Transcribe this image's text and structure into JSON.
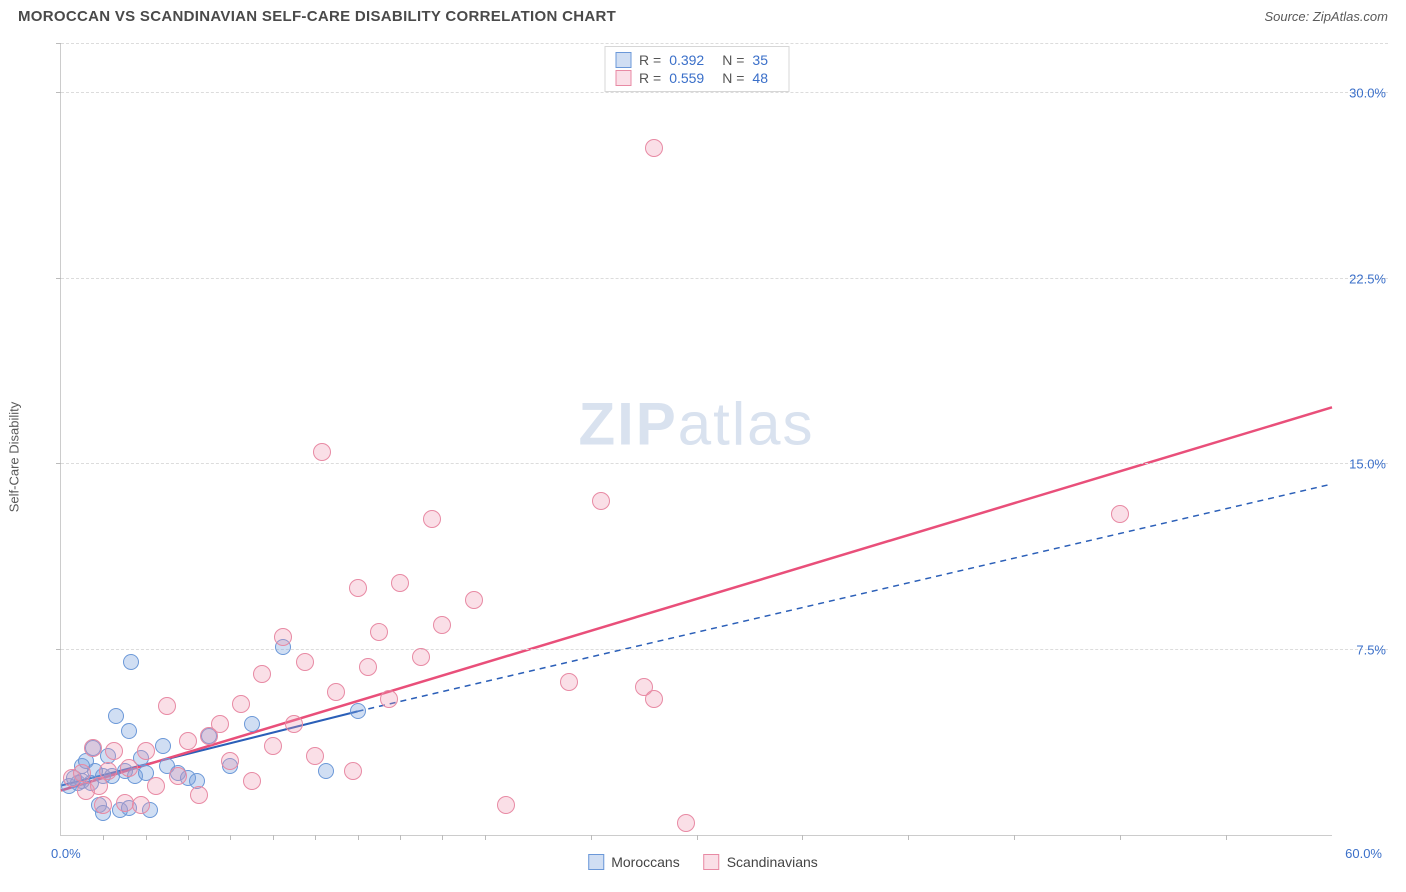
{
  "header": {
    "title": "MOROCCAN VS SCANDINAVIAN SELF-CARE DISABILITY CORRELATION CHART",
    "source_label": "Source: ",
    "source_name": "ZipAtlas.com"
  },
  "chart": {
    "type": "scatter",
    "watermark_bold": "ZIP",
    "watermark_rest": "atlas",
    "y_axis_label": "Self-Care Disability",
    "background_color": "#ffffff",
    "grid_color": "#dcdcdc",
    "axis_color": "#cccccc",
    "tick_label_color": "#3a6fc9",
    "xlim": [
      0,
      60
    ],
    "ylim": [
      0,
      32
    ],
    "x_ticks_minor": [
      2,
      4,
      6,
      8,
      10,
      12,
      14,
      16,
      18,
      20,
      25,
      30,
      35,
      40,
      45,
      50,
      55
    ],
    "x_tick_labels": {
      "min": "0.0%",
      "max": "60.0%"
    },
    "y_gridlines": [
      7.5,
      15.0,
      22.5,
      30.0,
      32.0
    ],
    "y_tick_labels": [
      "7.5%",
      "15.0%",
      "22.5%",
      "30.0%"
    ],
    "series": [
      {
        "name": "Moroccans",
        "marker_color_fill": "rgba(120,160,220,0.35)",
        "marker_color_stroke": "#6b98d8",
        "marker_radius": 8,
        "trend_color": "#2b5fb8",
        "trend_width": 2,
        "trend": {
          "x1": 0,
          "y1": 2.0,
          "x2": 14,
          "y2": 5.0
        },
        "trend_ext": {
          "x1": 14,
          "y1": 5.0,
          "x2": 60,
          "y2": 14.2
        },
        "trend_ext_dash": "6 5",
        "points": [
          [
            0.4,
            2.0
          ],
          [
            0.6,
            2.3
          ],
          [
            0.8,
            2.1
          ],
          [
            1.0,
            2.8
          ],
          [
            1.0,
            2.2
          ],
          [
            1.2,
            3.0
          ],
          [
            1.4,
            2.1
          ],
          [
            1.5,
            3.5
          ],
          [
            1.6,
            2.6
          ],
          [
            1.8,
            1.2
          ],
          [
            2.0,
            2.4
          ],
          [
            2.0,
            0.9
          ],
          [
            2.2,
            3.2
          ],
          [
            2.4,
            2.4
          ],
          [
            2.6,
            4.8
          ],
          [
            2.8,
            1.0
          ],
          [
            3.0,
            2.6
          ],
          [
            3.2,
            1.1
          ],
          [
            3.2,
            4.2
          ],
          [
            3.3,
            7.0
          ],
          [
            3.5,
            2.4
          ],
          [
            3.8,
            3.1
          ],
          [
            4.0,
            2.5
          ],
          [
            4.2,
            1.0
          ],
          [
            4.8,
            3.6
          ],
          [
            5.0,
            2.8
          ],
          [
            5.5,
            2.5
          ],
          [
            6.0,
            2.3
          ],
          [
            6.4,
            2.2
          ],
          [
            7.0,
            4.0
          ],
          [
            8.0,
            2.8
          ],
          [
            9.0,
            4.5
          ],
          [
            10.5,
            7.6
          ],
          [
            12.5,
            2.6
          ],
          [
            14.0,
            5.0
          ]
        ]
      },
      {
        "name": "Scandinavians",
        "marker_color_fill": "rgba(240,150,175,0.30)",
        "marker_color_stroke": "#e88aa4",
        "marker_radius": 9,
        "trend_color": "#e94f7a",
        "trend_width": 2.5,
        "trend": {
          "x1": 0,
          "y1": 1.8,
          "x2": 60,
          "y2": 17.3
        },
        "points": [
          [
            0.5,
            2.3
          ],
          [
            1.0,
            2.5
          ],
          [
            1.2,
            1.8
          ],
          [
            1.5,
            3.5
          ],
          [
            1.8,
            2.0
          ],
          [
            2.0,
            1.2
          ],
          [
            2.2,
            2.6
          ],
          [
            2.5,
            3.4
          ],
          [
            3.0,
            1.3
          ],
          [
            3.2,
            2.7
          ],
          [
            3.8,
            1.2
          ],
          [
            4.0,
            3.4
          ],
          [
            4.5,
            2.0
          ],
          [
            5.0,
            5.2
          ],
          [
            5.5,
            2.4
          ],
          [
            6.0,
            3.8
          ],
          [
            6.5,
            1.6
          ],
          [
            7.0,
            4.0
          ],
          [
            7.5,
            4.5
          ],
          [
            8.0,
            3.0
          ],
          [
            8.5,
            5.3
          ],
          [
            9.0,
            2.2
          ],
          [
            9.5,
            6.5
          ],
          [
            10.0,
            3.6
          ],
          [
            10.5,
            8.0
          ],
          [
            11.0,
            4.5
          ],
          [
            11.5,
            7.0
          ],
          [
            12.0,
            3.2
          ],
          [
            12.3,
            15.5
          ],
          [
            13.0,
            5.8
          ],
          [
            13.8,
            2.6
          ],
          [
            14.0,
            10.0
          ],
          [
            14.5,
            6.8
          ],
          [
            15.0,
            8.2
          ],
          [
            15.5,
            5.5
          ],
          [
            16.0,
            10.2
          ],
          [
            17.0,
            7.2
          ],
          [
            17.5,
            12.8
          ],
          [
            18.0,
            8.5
          ],
          [
            19.5,
            9.5
          ],
          [
            21.0,
            1.2
          ],
          [
            24.0,
            6.2
          ],
          [
            25.5,
            13.5
          ],
          [
            27.5,
            6.0
          ],
          [
            28.0,
            5.5
          ],
          [
            28.0,
            27.8
          ],
          [
            29.5,
            0.5
          ],
          [
            50.0,
            13.0
          ]
        ]
      }
    ],
    "top_legend": [
      {
        "swatch_fill": "rgba(120,160,220,0.35)",
        "swatch_stroke": "#6b98d8",
        "r_label": "R =",
        "r_value": "0.392",
        "n_label": "N =",
        "n_value": "35"
      },
      {
        "swatch_fill": "rgba(240,150,175,0.30)",
        "swatch_stroke": "#e88aa4",
        "r_label": "R =",
        "r_value": "0.559",
        "n_label": "N =",
        "n_value": "48"
      }
    ],
    "bottom_legend": [
      {
        "swatch_fill": "rgba(120,160,220,0.35)",
        "swatch_stroke": "#6b98d8",
        "label": "Moroccans"
      },
      {
        "swatch_fill": "rgba(240,150,175,0.30)",
        "swatch_stroke": "#e88aa4",
        "label": "Scandinavians"
      }
    ]
  }
}
